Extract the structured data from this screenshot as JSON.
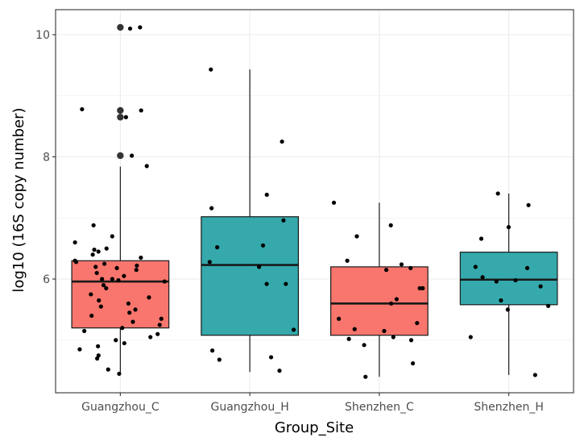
{
  "chart_data": {
    "type": "boxplot",
    "title": "",
    "xlabel": "Group_Site",
    "ylabel": "log10 (16S copy number)",
    "ylim": [
      4.2,
      10.4
    ],
    "yticks": [
      6,
      8,
      10
    ],
    "ytick_labels": [
      "6",
      "8",
      "10"
    ],
    "grid": true,
    "legend": "none",
    "categories": [
      "Guangzhou_C",
      "Guangzhou_H",
      "Shenzhen_C",
      "Shenzhen_H"
    ],
    "boxes": [
      {
        "name": "Guangzhou_C",
        "color": "#F8766D",
        "q1": 5.2,
        "median": 5.96,
        "q3": 6.3,
        "whisker_low": 4.45,
        "whisker_high": 7.84,
        "outliers": [
          8.02,
          8.65,
          8.76,
          10.12
        ],
        "points": [
          6.7,
          6.6,
          6.5,
          6.48,
          6.45,
          6.4,
          6.35,
          6.3,
          6.28,
          6.25,
          6.22,
          6.2,
          6.18,
          6.15,
          6.1,
          6.05,
          6.0,
          5.98,
          5.96,
          5.9,
          5.85,
          5.75,
          5.7,
          5.65,
          5.6,
          5.55,
          5.5,
          5.45,
          5.4,
          5.35,
          5.3,
          5.25,
          5.2,
          5.15,
          5.1,
          5.05,
          5.0,
          4.95,
          4.9,
          4.85,
          4.75,
          4.7,
          4.52,
          4.45,
          6.88,
          7.85,
          8.02,
          8.65,
          8.76,
          8.78,
          10.12,
          10.1,
          6.0
        ]
      },
      {
        "name": "Guangzhou_H",
        "color": "#35A9AC",
        "q1": 5.08,
        "median": 6.23,
        "q3": 7.02,
        "whisker_low": 4.48,
        "whisker_high": 9.43,
        "outliers": [],
        "points": [
          9.43,
          8.25,
          7.38,
          7.16,
          6.96,
          6.55,
          6.52,
          6.28,
          6.2,
          5.92,
          5.92,
          5.17,
          4.83,
          4.72,
          4.68,
          4.5
        ]
      },
      {
        "name": "Shenzhen_C",
        "color": "#F8766D",
        "q1": 5.08,
        "median": 5.6,
        "q3": 6.2,
        "whisker_low": 4.4,
        "whisker_high": 7.25,
        "outliers": [],
        "points": [
          7.25,
          6.88,
          6.7,
          6.3,
          6.24,
          6.18,
          6.15,
          5.85,
          5.85,
          5.67,
          5.6,
          5.35,
          5.28,
          5.18,
          5.15,
          5.05,
          5.02,
          5.0,
          4.92,
          4.62,
          4.4
        ]
      },
      {
        "name": "Shenzhen_H",
        "color": "#35A9AC",
        "q1": 5.58,
        "median": 5.99,
        "q3": 6.44,
        "whisker_low": 4.43,
        "whisker_high": 7.4,
        "outliers": [],
        "points": [
          7.4,
          7.21,
          6.85,
          6.66,
          6.2,
          6.18,
          6.03,
          5.98,
          5.96,
          5.88,
          5.65,
          5.56,
          5.5,
          5.05,
          4.43
        ]
      }
    ]
  }
}
